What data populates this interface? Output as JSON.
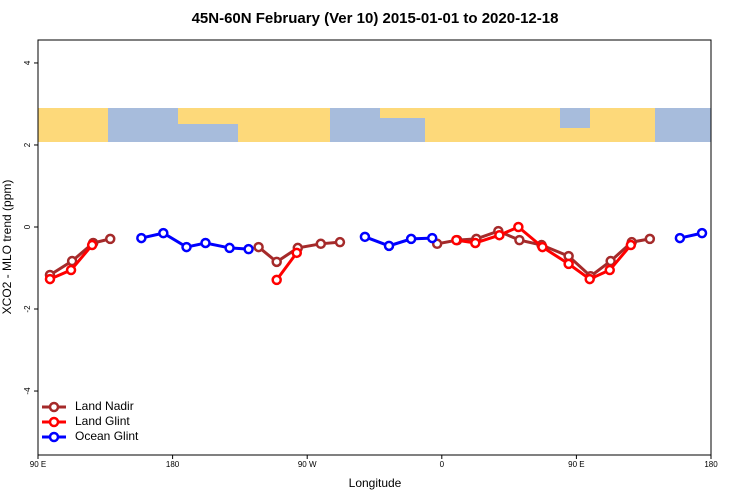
{
  "chart_data": {
    "type": "line",
    "title": "45N-60N February (Ver 10)   2015-01-01 to 2020-12-18",
    "x_label": "Longitude",
    "y_label": "XCO2 - MLO trend (ppm)",
    "xlim": [
      90,
      540
    ],
    "ylim": [
      -5.56,
      4.56
    ],
    "xticks": [
      {
        "value": 90,
        "label": "90 E"
      },
      {
        "value": 180,
        "label": "180"
      },
      {
        "value": 270,
        "label": "90 W"
      },
      {
        "value": 360,
        "label": "0"
      },
      {
        "value": 450,
        "label": "90 E"
      },
      {
        "value": 540,
        "label": "180"
      }
    ],
    "yticks": [
      4,
      2,
      0,
      -2,
      -4
    ],
    "legend": "bottom-left",
    "series": [
      {
        "name": "Land Nadir",
        "color": "#a52a2a",
        "x": [
          98.0,
          112.8,
          126.9,
          138.3,
          null,
          237.5,
          249.6,
          263.7,
          279.1,
          291.9,
          null,
          356.9,
          370.3,
          383.1,
          397.8,
          411.9,
          426.7,
          444.8,
          459.5,
          472.9,
          487.0,
          499.1
        ],
        "values": [
          -1.17,
          -0.83,
          -0.39,
          -0.29,
          null,
          -0.49,
          -0.85,
          -0.51,
          -0.41,
          -0.37,
          null,
          -0.41,
          -0.32,
          -0.29,
          -0.1,
          -0.32,
          -0.44,
          -0.71,
          -1.2,
          -0.83,
          -0.37,
          -0.29
        ]
      },
      {
        "name": "Land Glint",
        "color": "#ff0000",
        "x": [
          98.0,
          112.1,
          126.2,
          null,
          249.6,
          263.0,
          null,
          369.7,
          382.4,
          398.5,
          411.2,
          427.3,
          444.8,
          458.9,
          472.3,
          486.4
        ],
        "values": [
          -1.27,
          -1.05,
          -0.44,
          null,
          -1.29,
          -0.63,
          null,
          -0.32,
          -0.39,
          -0.2,
          0.0,
          -0.49,
          -0.9,
          -1.27,
          -1.05,
          -0.44
        ]
      },
      {
        "name": "Ocean Glint",
        "color": "#0000ff",
        "x": [
          159.1,
          173.8,
          189.3,
          202.0,
          218.1,
          230.8,
          null,
          308.6,
          324.7,
          339.5,
          353.6,
          null,
          519.2,
          534.0
        ],
        "values": [
          -0.27,
          -0.15,
          -0.49,
          -0.39,
          -0.51,
          -0.54,
          null,
          -0.24,
          -0.46,
          -0.29,
          -0.27,
          null,
          -0.27,
          -0.15
        ]
      }
    ]
  }
}
